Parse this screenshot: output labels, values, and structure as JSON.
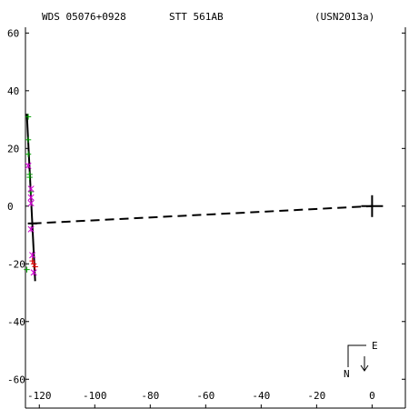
{
  "header": {
    "wds_id": "WDS 05076+0928",
    "discoverer": "STT 561AB",
    "reference": "(USN2013a)"
  },
  "compass": {
    "east": "E",
    "north": "N"
  },
  "colors": {
    "axes": "#000000",
    "orbit": "#000000",
    "obs_green": "#00a000",
    "obs_magenta": "#d000d0",
    "obs_red": "#e00000"
  },
  "chart_data": {
    "type": "scatter",
    "title": "",
    "xlabel": "",
    "ylabel": "",
    "xlim": [
      -125,
      12
    ],
    "ylim": [
      -70,
      62
    ],
    "x_ticks": [
      -120,
      -100,
      -80,
      -60,
      -40,
      -20,
      0
    ],
    "x_tick_labels": [
      "-120",
      "-100",
      "-80",
      "-60",
      "-40",
      "-20",
      "0"
    ],
    "y_ticks": [
      60,
      40,
      20,
      0,
      -20,
      -40,
      -60
    ],
    "y_tick_labels": [
      "60",
      "40",
      "20",
      "0",
      "-20",
      "-40",
      "-60"
    ],
    "primary_star": {
      "x": 0,
      "y": 0
    },
    "orbit_line": {
      "from": {
        "x": -124.5,
        "y": 32
      },
      "to": {
        "x": -121.5,
        "y": -26
      }
    },
    "periastron_tick": {
      "x": -122.5,
      "y": -6
    },
    "node_line": {
      "from": {
        "x": -122.5,
        "y": -6
      },
      "to": {
        "x": 0,
        "y": 0
      }
    },
    "series": [
      {
        "marker": "+",
        "color": "green",
        "points": [
          {
            "x": -124,
            "y": 31
          },
          {
            "x": -124,
            "y": 23
          },
          {
            "x": -124,
            "y": 18
          },
          {
            "x": -123.5,
            "y": 11
          },
          {
            "x": -123.5,
            "y": 10
          },
          {
            "x": -123,
            "y": 5
          },
          {
            "x": -124.5,
            "y": -22
          }
        ]
      },
      {
        "marker": "x",
        "color": "magenta",
        "points": [
          {
            "x": -124,
            "y": 14
          },
          {
            "x": -123,
            "y": 6
          },
          {
            "x": -123,
            "y": 3
          },
          {
            "x": -123,
            "y": 1
          },
          {
            "x": -123,
            "y": -8
          },
          {
            "x": -122.5,
            "y": -17
          },
          {
            "x": -122,
            "y": -23
          }
        ]
      },
      {
        "marker": "+",
        "color": "red",
        "points": [
          {
            "x": -122.5,
            "y": -19
          },
          {
            "x": -122,
            "y": -20
          },
          {
            "x": -121.5,
            "y": -21
          }
        ]
      }
    ]
  }
}
